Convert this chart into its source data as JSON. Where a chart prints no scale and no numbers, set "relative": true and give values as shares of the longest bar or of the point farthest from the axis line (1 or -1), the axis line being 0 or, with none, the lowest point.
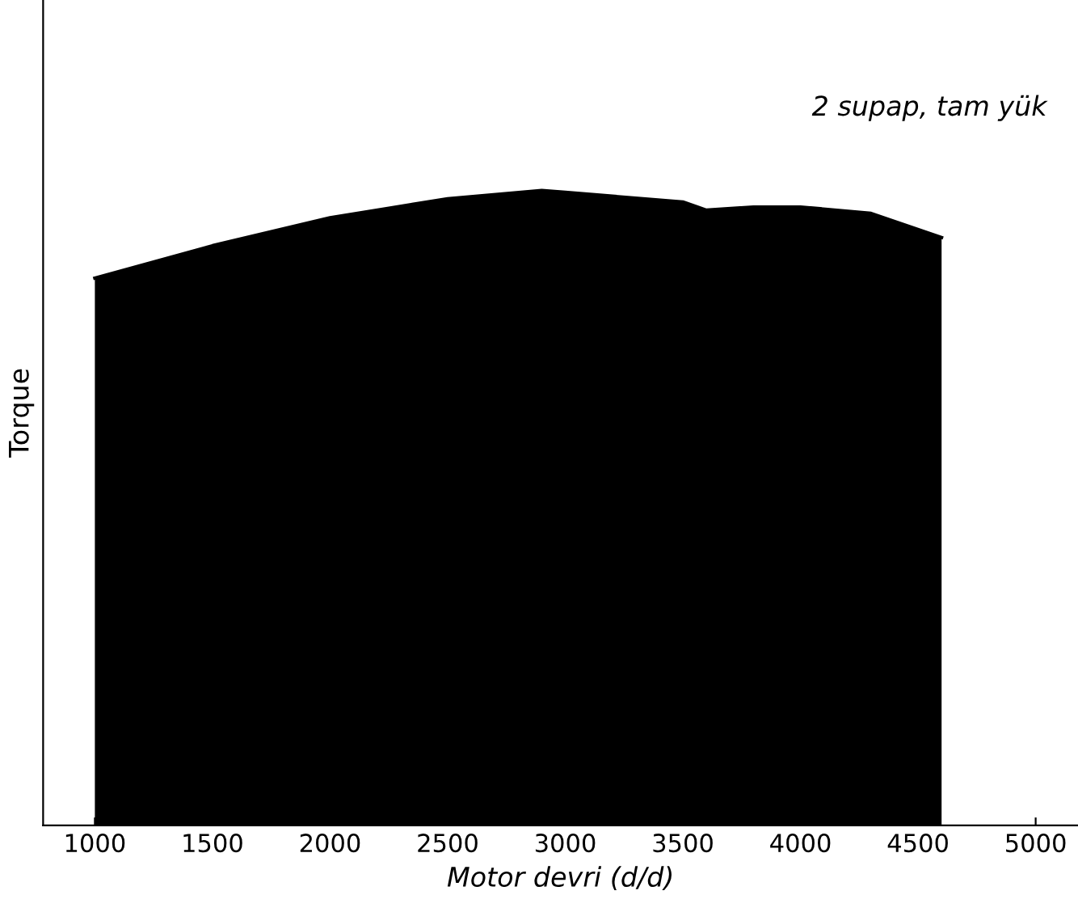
{
  "chart_data": {
    "type": "area",
    "relative": true,
    "x": [
      1000,
      1500,
      2000,
      2500,
      2900,
      3000,
      3500,
      3600,
      3800,
      4000,
      4300,
      4600
    ],
    "values": [
      0.862,
      0.913,
      0.957,
      0.987,
      1,
      0.997,
      0.982,
      0.969,
      0.974,
      0.974,
      0.964,
      0.926
    ],
    "color": "#000000",
    "xlim": [
      780,
      5180
    ],
    "xticks": [
      1000,
      1500,
      2000,
      2500,
      3000,
      3500,
      4000,
      4500,
      5000
    ],
    "xlabel": "Motor devri (d/d)",
    "ylabel": "Torque",
    "annotations": [
      "2 supap, tam yük"
    ],
    "grid": false
  }
}
